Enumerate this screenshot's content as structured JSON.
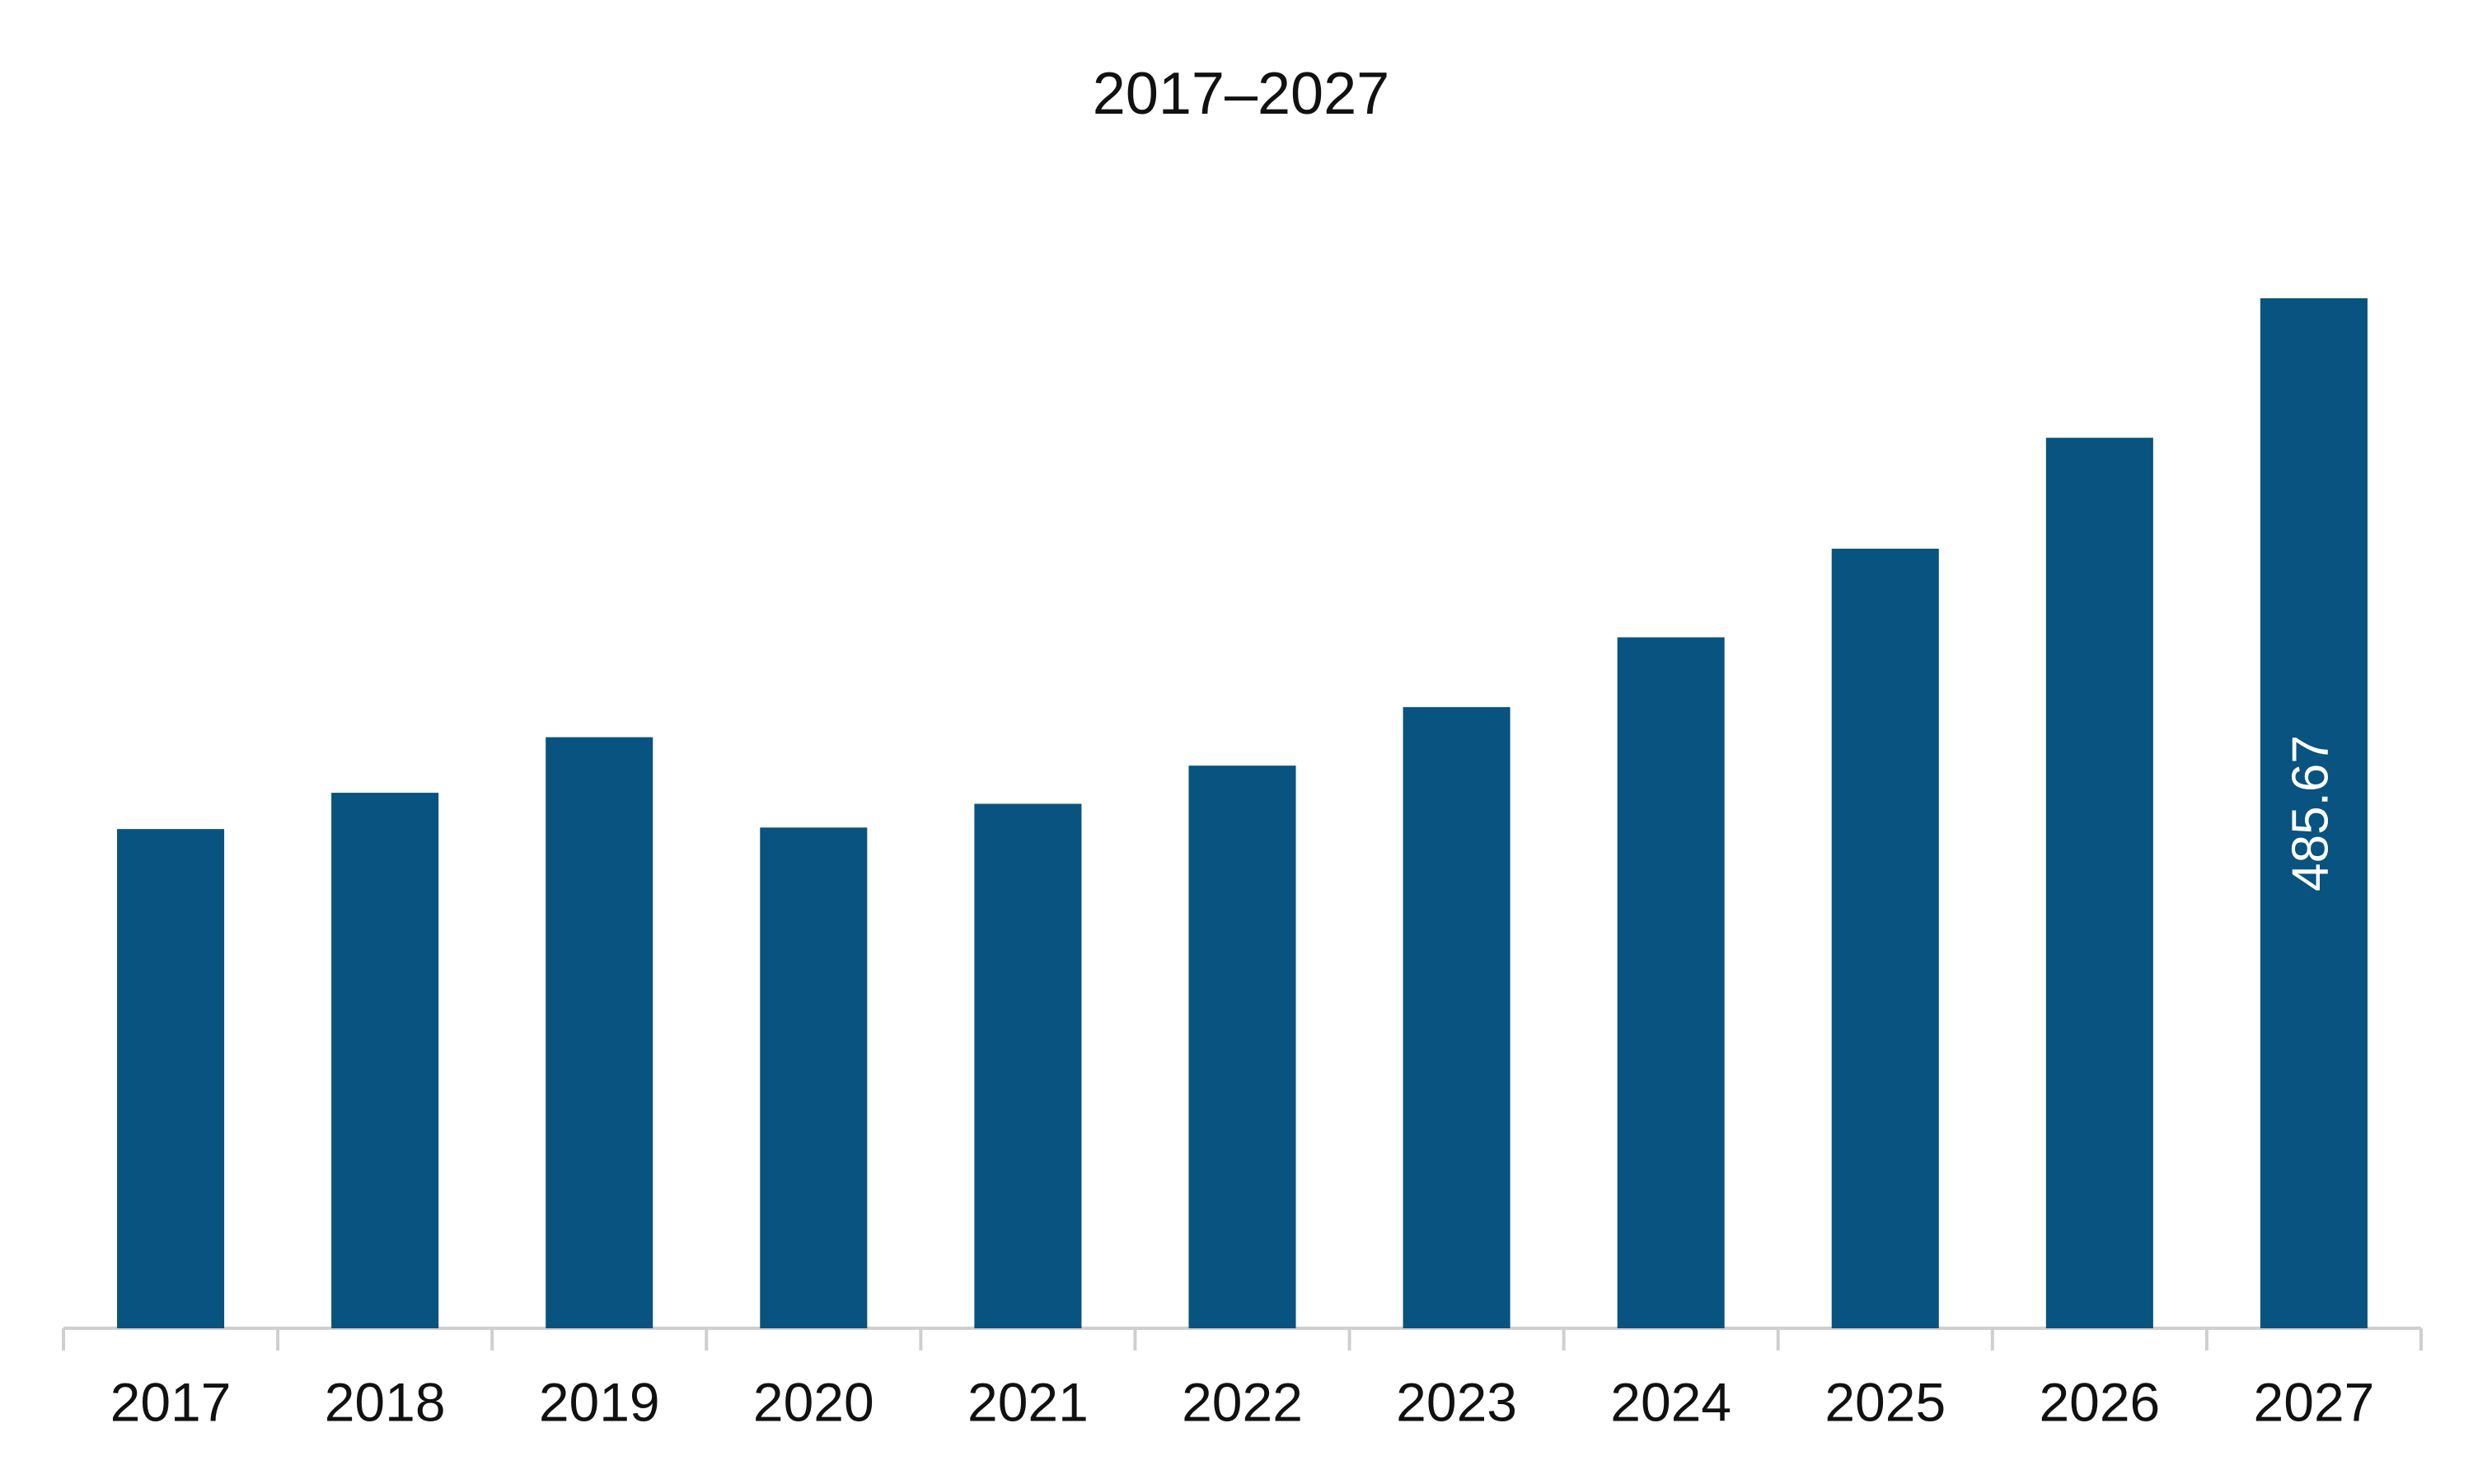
{
  "chart_data": {
    "type": "bar",
    "title": "2017–2027",
    "categories": [
      "2017",
      "2018",
      "2019",
      "2020",
      "2021",
      "2022",
      "2023",
      "2024",
      "2025",
      "2026",
      "2027"
    ],
    "values": [
      235.4,
      252.5,
      278.7,
      236.1,
      247.3,
      265.3,
      292.9,
      325.8,
      367.6,
      419.9,
      485.67
    ],
    "value_labels": [
      null,
      null,
      null,
      null,
      null,
      null,
      null,
      null,
      null,
      null,
      "485.67"
    ],
    "color": "#08537f"
  }
}
